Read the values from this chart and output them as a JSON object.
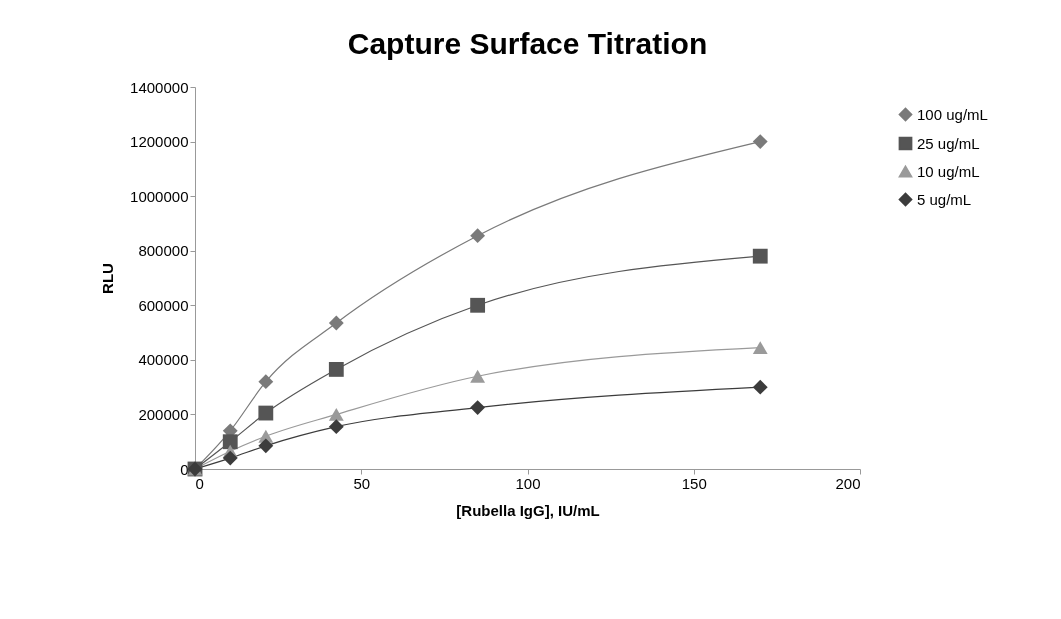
{
  "chart_data": {
    "type": "line",
    "title": "Capture Surface Titration",
    "xlabel": "[Rubella IgG], IU/mL",
    "ylabel": "RLU",
    "x": [
      0,
      10.6,
      21.3,
      42.5,
      85,
      170
    ],
    "series": [
      {
        "name": "100 ug/mL",
        "color": "#7a7a7a",
        "marker": "diamond",
        "values": [
          0,
          140000,
          320000,
          535000,
          855000,
          1200000
        ]
      },
      {
        "name": "25 ug/mL",
        "color": "#555555",
        "marker": "square",
        "values": [
          0,
          100000,
          205000,
          365000,
          600000,
          780000
        ]
      },
      {
        "name": "10 ug/mL",
        "color": "#9a9a9a",
        "marker": "triangle",
        "values": [
          0,
          65000,
          120000,
          200000,
          340000,
          445000
        ]
      },
      {
        "name": "5 ug/mL",
        "color": "#3c3c3c",
        "marker": "diamond",
        "values": [
          0,
          40000,
          85000,
          155000,
          225000,
          300000
        ]
      }
    ],
    "xlim": [
      0,
      200
    ],
    "xticks": [
      0,
      50,
      100,
      150,
      200
    ],
    "ylim": [
      0,
      1400000
    ],
    "yticks": [
      0,
      200000,
      400000,
      600000,
      800000,
      1000000,
      1200000,
      1400000
    ],
    "grid": false,
    "legend": "right",
    "line_style": "solid"
  }
}
